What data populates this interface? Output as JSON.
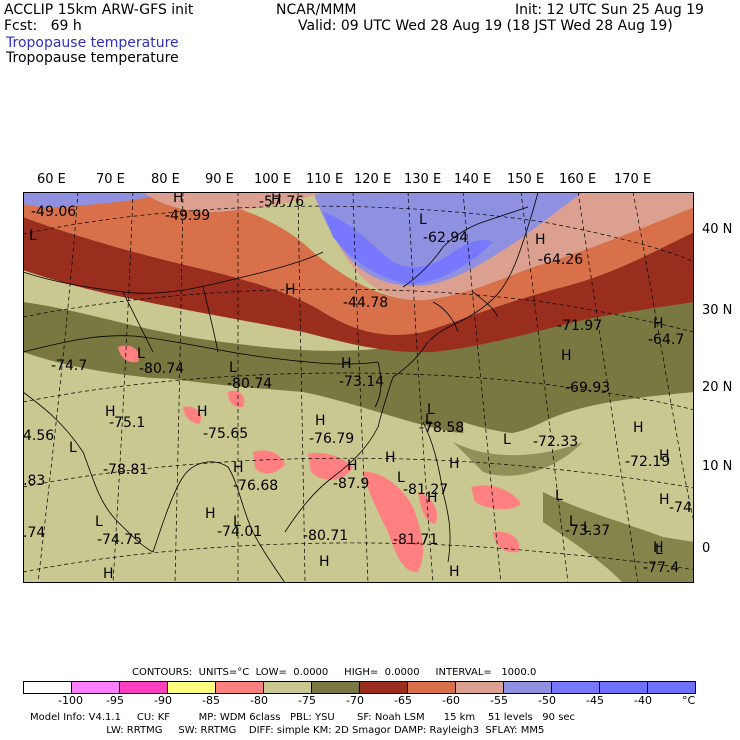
{
  "header": {
    "left1": "ACCLIP 15km ARW-GFS init",
    "left2": "Fcst:   69 h",
    "center": "NCAR/MMM",
    "right1": "Init: 12 UTC Sun 25 Aug 19",
    "right2": "Valid: 09 UTC Wed 28 Aug 19 (18 JST Wed 28 Aug 19)",
    "field1": "Tropopause temperature",
    "field2": "Tropopause temperature"
  },
  "lon_labels": [
    "60 E",
    "70 E",
    "80 E",
    "90 E",
    "100 E",
    "110 E",
    "120 E",
    "130 E",
    "140 E",
    "150 E",
    "160 E",
    "170 E"
  ],
  "lat_labels": [
    "40 N",
    "30 N",
    "20 N",
    "10 N",
    "0"
  ],
  "map_labels": [
    {
      "t": "-49.06"
    },
    {
      "t": "-49.99"
    },
    {
      "t": "-57.76"
    },
    {
      "t": "-62.94"
    },
    {
      "t": "-64.26"
    },
    {
      "t": "-44.78"
    },
    {
      "t": "-71.97"
    },
    {
      "t": "-64.7"
    },
    {
      "t": "-74.7"
    },
    {
      "t": "-80.74"
    },
    {
      "t": "-80.74"
    },
    {
      "t": "-73.14"
    },
    {
      "t": "-69.93"
    },
    {
      "t": "-75.1"
    },
    {
      "t": "-75.65"
    },
    {
      "t": "-76.79"
    },
    {
      "t": "-78.58"
    },
    {
      "t": "-72.33"
    },
    {
      "t": "-72.19"
    },
    {
      "t": "4.56"
    },
    {
      "t": "-78.81"
    },
    {
      "t": "-76.68"
    },
    {
      "t": "-87.9"
    },
    {
      "t": "-81.27"
    },
    {
      "t": "-73.37"
    },
    {
      "t": "-74"
    },
    {
      "t": "-74.75"
    },
    {
      "t": "-74.01"
    },
    {
      "t": "-80.71"
    },
    {
      "t": "-81.71"
    },
    {
      "t": "-77.4"
    },
    {
      "t": ".83"
    },
    {
      "t": ".74"
    }
  ],
  "h_marks": [
    "H",
    "H",
    "H",
    "H",
    "H",
    "H",
    "H",
    "H",
    "H",
    "H",
    "H",
    "H",
    "H",
    "H",
    "H",
    "H",
    "H",
    "H",
    "H",
    "H",
    "H",
    "H",
    "H"
  ],
  "l_marks": [
    "L",
    "L",
    "L",
    "L",
    "L",
    "L",
    "L",
    "L",
    "L",
    "L",
    "L",
    "L",
    "L",
    "L",
    "L"
  ],
  "legend": {
    "contours": "CONTOURS:  UNITS=°C  LOW=  0.0000     HIGH=  0.0000     INTERVAL=   1000.0",
    "colors": [
      "#ffffff",
      "#ff80ff",
      "#ff40c0",
      "#ffff80",
      "#ff8080",
      "#c8c890",
      "#787840",
      "#9a2e1e",
      "#d8704a",
      "#dca090",
      "#9090e0",
      "#7878ff",
      "#7070ff",
      "#7070ff"
    ],
    "labels": [
      "-100",
      "-95",
      "-90",
      "-85",
      "-80",
      "-75",
      "-70",
      "-65",
      "-60",
      "-55",
      "-50",
      "-45",
      "-40",
      "°C"
    ]
  },
  "footer": {
    "line1": "Model Info: V4.1.1     CU: KF         MP: WDM 6class   PBL: YSU       SF: Noah LSM      15 km    51 levels   90 sec",
    "line2": "                        LW: RRTMG     SW: RRTMG    DIFF: simple KM: 2D Smagor DAMP: Rayleigh3  SFLAY: MM5"
  }
}
